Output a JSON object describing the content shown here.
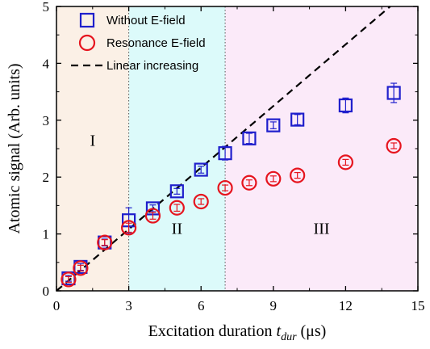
{
  "chart_data": {
    "type": "scatter",
    "xlabel": {
      "prefix": "Excitation duration ",
      "var": "t",
      "sub": "dur",
      "unit": " (μs)"
    },
    "ylabel": "Atomic signal (Arb. units)",
    "xlim": [
      0,
      15
    ],
    "ylim": [
      0,
      5
    ],
    "xticks": [
      0,
      3,
      6,
      9,
      12,
      15
    ],
    "yticks": [
      0,
      1,
      2,
      3,
      4,
      5
    ],
    "grid": false,
    "legend_position": "top-left",
    "regions": [
      {
        "label": "I",
        "x_start": 0,
        "x_end": 3,
        "color": "#fbf0e6",
        "label_x": 1.5,
        "label_y": 2.55
      },
      {
        "label": "II",
        "x_start": 3,
        "x_end": 7,
        "color": "#dcfafa",
        "label_x": 5,
        "label_y": 1.0
      },
      {
        "label": "III",
        "x_start": 7,
        "x_end": 15,
        "color": "#fbeaf9",
        "label_x": 11,
        "label_y": 1.0
      }
    ],
    "series": [
      {
        "name": "Without E-field",
        "marker": "square",
        "color": "#1f1fcc",
        "x": [
          0.5,
          1,
          2,
          3,
          4,
          5,
          6,
          7,
          8,
          9,
          10,
          12,
          14
        ],
        "y": [
          0.22,
          0.42,
          0.85,
          1.24,
          1.45,
          1.75,
          2.13,
          2.42,
          2.68,
          2.91,
          3.01,
          3.26,
          3.48
        ],
        "err": [
          0.05,
          0.06,
          0.06,
          0.22,
          0.06,
          0.05,
          0.06,
          0.12,
          0.09,
          0.06,
          0.09,
          0.13,
          0.17
        ]
      },
      {
        "name": "Resonance E-field",
        "marker": "circle",
        "color": "#e6141e",
        "x": [
          0.5,
          1,
          2,
          3,
          4,
          5,
          6,
          7,
          8,
          9,
          10,
          12,
          14
        ],
        "y": [
          0.2,
          0.4,
          0.85,
          1.11,
          1.32,
          1.46,
          1.57,
          1.81,
          1.9,
          1.97,
          2.03,
          2.26,
          2.55
        ],
        "err": [
          0.05,
          0.05,
          0.05,
          0.08,
          0.06,
          0.06,
          0.05,
          0.05,
          0.05,
          0.05,
          0.05,
          0.05,
          0.05
        ]
      },
      {
        "name": "Linear increasing",
        "marker": "dashed-line",
        "color": "#000000",
        "x": [
          0,
          13.85
        ],
        "y": [
          0,
          5
        ]
      }
    ]
  }
}
